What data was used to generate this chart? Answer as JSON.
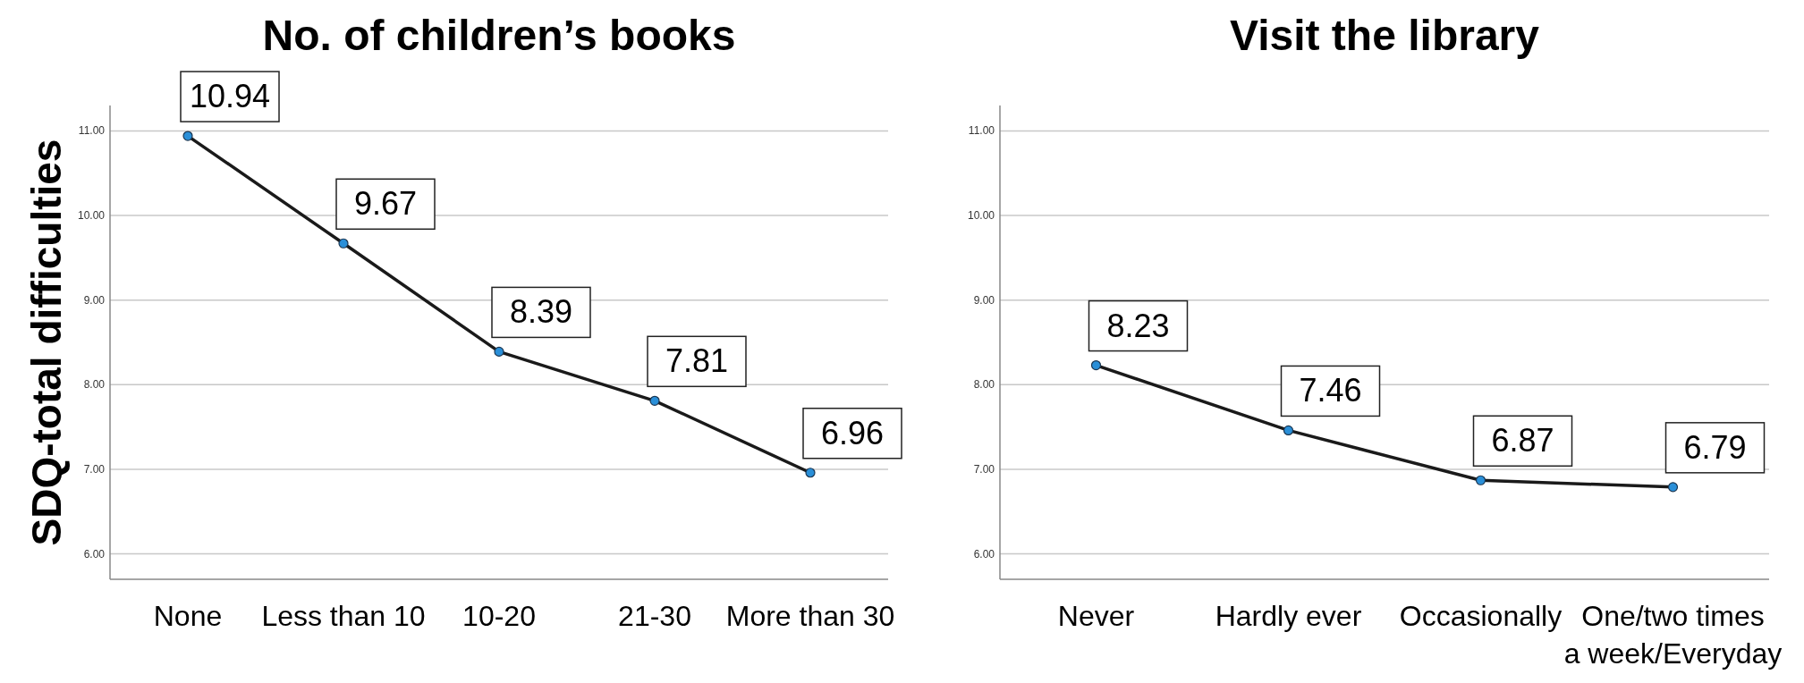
{
  "chart_data": [
    {
      "type": "line",
      "title": "No. of children’s books",
      "ylabel": "SDQ-total difficulties",
      "categories": [
        "None",
        "Less than 10",
        "10-20",
        "21-30",
        "More than 30"
      ],
      "series": [
        {
          "color": "#1a1a1a",
          "values": [
            10.94,
            9.67,
            8.39,
            7.81,
            6.96
          ]
        }
      ],
      "ylim": [
        5.7,
        11.3
      ],
      "yticks": [
        {
          "value": 6,
          "label": "6.00"
        },
        {
          "value": 7,
          "label": "7.00"
        },
        {
          "value": 8,
          "label": "8.00"
        },
        {
          "value": 9,
          "label": "9.00"
        },
        {
          "value": 10,
          "label": "10.00"
        },
        {
          "value": 11,
          "label": "11.00"
        }
      ],
      "grid": "y",
      "marker": "circle",
      "data_labels": true
    },
    {
      "type": "line",
      "title": "Visit the library",
      "categories": [
        "Never",
        "Hardly ever",
        "Occasionally",
        "One/two times a week/Everyday"
      ],
      "series": [
        {
          "color": "#1a1a1a",
          "values": [
            8.23,
            7.46,
            6.87,
            6.79
          ]
        }
      ],
      "ylim": [
        5.7,
        11.3
      ],
      "yticks": [
        {
          "value": 6,
          "label": "6.00"
        },
        {
          "value": 7,
          "label": "7.00"
        },
        {
          "value": 8,
          "label": "8.00"
        },
        {
          "value": 9,
          "label": "9.00"
        },
        {
          "value": 10,
          "label": "10.00"
        },
        {
          "value": 11,
          "label": "11.00"
        }
      ],
      "grid": "y",
      "marker": "circle",
      "data_labels": true
    }
  ]
}
